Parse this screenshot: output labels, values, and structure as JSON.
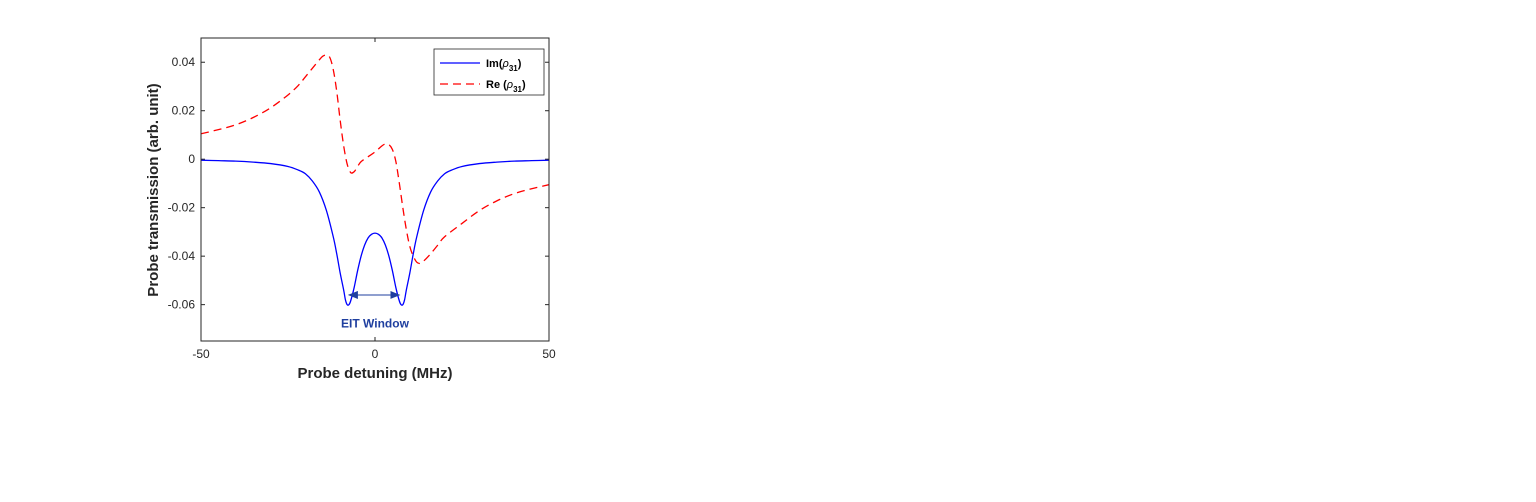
{
  "chart_data": {
    "type": "line",
    "title": "",
    "xlabel": "Probe detuning (MHz)",
    "ylabel": "Probe transmission (arb. unit)",
    "xlim": [
      -50,
      50
    ],
    "ylim": [
      -0.075,
      0.05
    ],
    "xticks": [
      -50,
      0,
      50
    ],
    "xtick_labels": [
      "-50",
      "0",
      "50"
    ],
    "yticks": [
      0.04,
      0.02,
      0,
      -0.02,
      -0.04,
      -0.06
    ],
    "ytick_labels": [
      "0.04",
      "0.02",
      "0",
      "-0.02",
      "-0.04",
      "-0.06"
    ],
    "grid": false,
    "legend_position": "top-right",
    "series": [
      {
        "name": "Im(ρ31)",
        "legend_main": "Im(",
        "legend_symbol": "ρ",
        "legend_sub": "31",
        "legend_close": ")",
        "color": "#0000ff",
        "style": "solid",
        "x": [
          -50,
          -45,
          -40,
          -35,
          -30,
          -25,
          -22,
          -20,
          -18,
          -16,
          -14,
          -12,
          -11,
          -10,
          -9,
          -8.5,
          -8,
          -7.5,
          -7,
          -6,
          -5,
          -4,
          -3,
          -2,
          -1,
          0,
          1,
          2,
          3,
          4,
          5,
          6,
          7,
          7.5,
          8,
          8.5,
          9,
          10,
          11,
          12,
          14,
          16,
          18,
          20,
          22,
          25,
          30,
          35,
          40,
          45,
          50
        ],
        "y": [
          -0.0004,
          -0.0006,
          -0.0008,
          -0.0012,
          -0.0018,
          -0.003,
          -0.0045,
          -0.006,
          -0.009,
          -0.0135,
          -0.021,
          -0.032,
          -0.039,
          -0.047,
          -0.054,
          -0.058,
          -0.06,
          -0.06,
          -0.0585,
          -0.053,
          -0.046,
          -0.04,
          -0.0355,
          -0.0325,
          -0.031,
          -0.0305,
          -0.031,
          -0.0325,
          -0.0355,
          -0.04,
          -0.046,
          -0.053,
          -0.0585,
          -0.06,
          -0.06,
          -0.058,
          -0.054,
          -0.047,
          -0.039,
          -0.032,
          -0.021,
          -0.0135,
          -0.009,
          -0.006,
          -0.0045,
          -0.003,
          -0.0018,
          -0.0012,
          -0.0008,
          -0.0006,
          -0.0004
        ]
      },
      {
        "name": "Re (ρ31)",
        "legend_main": "Re (",
        "legend_symbol": "ρ",
        "legend_sub": "31",
        "legend_close": ")",
        "color": "#ff0000",
        "style": "dashed",
        "x": [
          -50,
          -45,
          -40,
          -35,
          -30,
          -25,
          -22,
          -20,
          -18,
          -16,
          -15,
          -14,
          -13,
          -12,
          -11,
          -10,
          -9,
          -8,
          -7,
          -6,
          -5,
          -4,
          -2,
          0,
          2,
          3,
          4,
          5,
          6,
          7,
          8,
          9,
          10,
          11,
          12,
          13,
          14,
          16,
          18,
          20,
          25,
          30,
          35,
          40,
          45,
          50
        ],
        "y": [
          0.0105,
          0.0122,
          0.0142,
          0.0172,
          0.0212,
          0.0265,
          0.0305,
          0.034,
          0.0375,
          0.041,
          0.0425,
          0.043,
          0.042,
          0.037,
          0.028,
          0.016,
          0.0055,
          -0.002,
          -0.0055,
          -0.0052,
          -0.003,
          -0.001,
          0.001,
          0.003,
          0.0055,
          0.0063,
          0.006,
          0.004,
          -0.001,
          -0.01,
          -0.02,
          -0.029,
          -0.036,
          -0.04,
          -0.0425,
          -0.043,
          -0.042,
          -0.039,
          -0.0355,
          -0.032,
          -0.0265,
          -0.0212,
          -0.0172,
          -0.0142,
          -0.0122,
          -0.0105
        ]
      }
    ],
    "annotations": [
      {
        "type": "double-arrow",
        "x_start": -7.5,
        "x_end": 7,
        "y": -0.056,
        "color": "#1f3f9f"
      },
      {
        "type": "text",
        "text": "EIT Window",
        "x": 0,
        "y": -0.0695,
        "color": "#1f3f9f"
      }
    ]
  }
}
